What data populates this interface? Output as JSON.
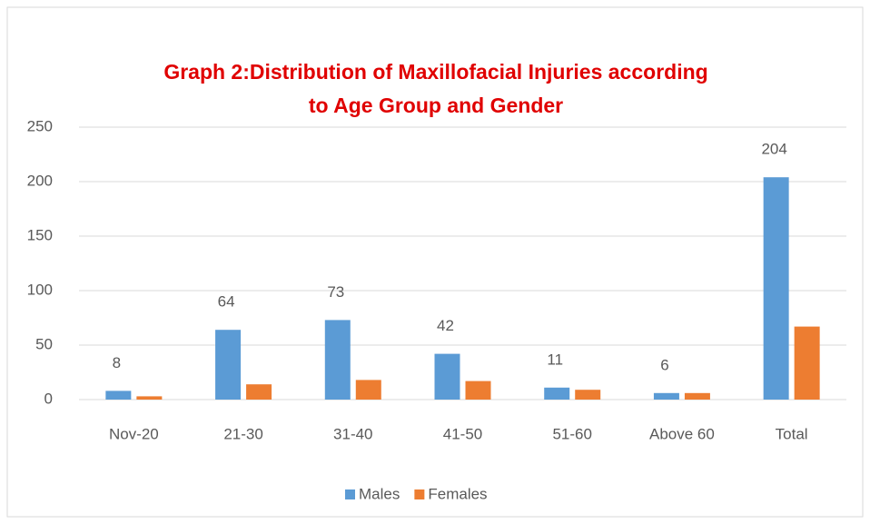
{
  "chart_data": {
    "type": "bar",
    "title": [
      "Graph 2:Distribution of Maxillofacial Injuries according",
      "to Age Group and Gender"
    ],
    "categories": [
      "Nov-20",
      "21-30",
      "31-40",
      "41-50",
      "51-60",
      "Above 60",
      "Total"
    ],
    "series": [
      {
        "name": "Males",
        "color": "#5b9bd5",
        "values": [
          8,
          64,
          73,
          42,
          11,
          6,
          204
        ],
        "data_labels": true
      },
      {
        "name": "Females",
        "color": "#ed7d31",
        "values": [
          3,
          14,
          18,
          17,
          9,
          6,
          67
        ],
        "data_labels": false
      }
    ],
    "ylim": [
      0,
      250
    ],
    "yticks": [
      0,
      50,
      100,
      150,
      200,
      250
    ],
    "grid": true,
    "legend": "bottom"
  }
}
